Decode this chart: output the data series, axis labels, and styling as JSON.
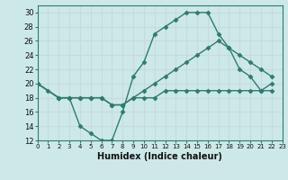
{
  "xlabel": "Humidex (Indice chaleur)",
  "background_color": "#cde8e8",
  "grid_color": "#ddd",
  "line_color": "#2e7b6e",
  "xlim": [
    0,
    23
  ],
  "ylim": [
    12,
    31
  ],
  "xticks": [
    0,
    1,
    2,
    3,
    4,
    5,
    6,
    7,
    8,
    9,
    10,
    11,
    12,
    13,
    14,
    15,
    16,
    17,
    18,
    19,
    20,
    21,
    22,
    23
  ],
  "yticks": [
    12,
    14,
    16,
    18,
    20,
    22,
    24,
    26,
    28,
    30
  ],
  "line1_x": [
    0,
    1,
    2,
    3,
    4,
    5,
    6,
    7,
    8,
    9,
    10,
    11,
    12,
    13,
    14,
    15,
    16,
    17,
    18,
    19,
    20,
    21,
    22
  ],
  "line1_y": [
    20,
    19,
    18,
    18,
    14,
    13,
    12,
    12,
    16,
    21,
    23,
    27,
    28,
    29,
    30,
    30,
    30,
    27,
    25,
    22,
    21,
    19,
    19
  ],
  "line2_x": [
    0,
    2,
    3,
    4,
    5,
    6,
    7,
    8,
    9,
    10,
    11,
    12,
    13,
    14,
    15,
    16,
    17,
    18,
    19,
    20,
    21,
    22
  ],
  "line2_y": [
    20,
    18,
    18,
    18,
    18,
    18,
    17,
    17,
    18,
    19,
    20,
    21,
    22,
    23,
    24,
    25,
    26,
    25,
    24,
    23,
    22,
    21
  ],
  "line3_x": [
    0,
    2,
    3,
    4,
    5,
    6,
    7,
    8,
    9,
    10,
    11,
    12,
    13,
    14,
    15,
    16,
    17,
    18,
    19,
    20,
    21,
    22
  ],
  "line3_y": [
    20,
    18,
    18,
    18,
    18,
    18,
    17,
    17,
    18,
    18,
    18,
    19,
    19,
    19,
    19,
    19,
    19,
    19,
    19,
    19,
    19,
    20
  ],
  "xlabel_fontsize": 7,
  "tick_fontsize": 5,
  "ytick_fontsize": 6
}
